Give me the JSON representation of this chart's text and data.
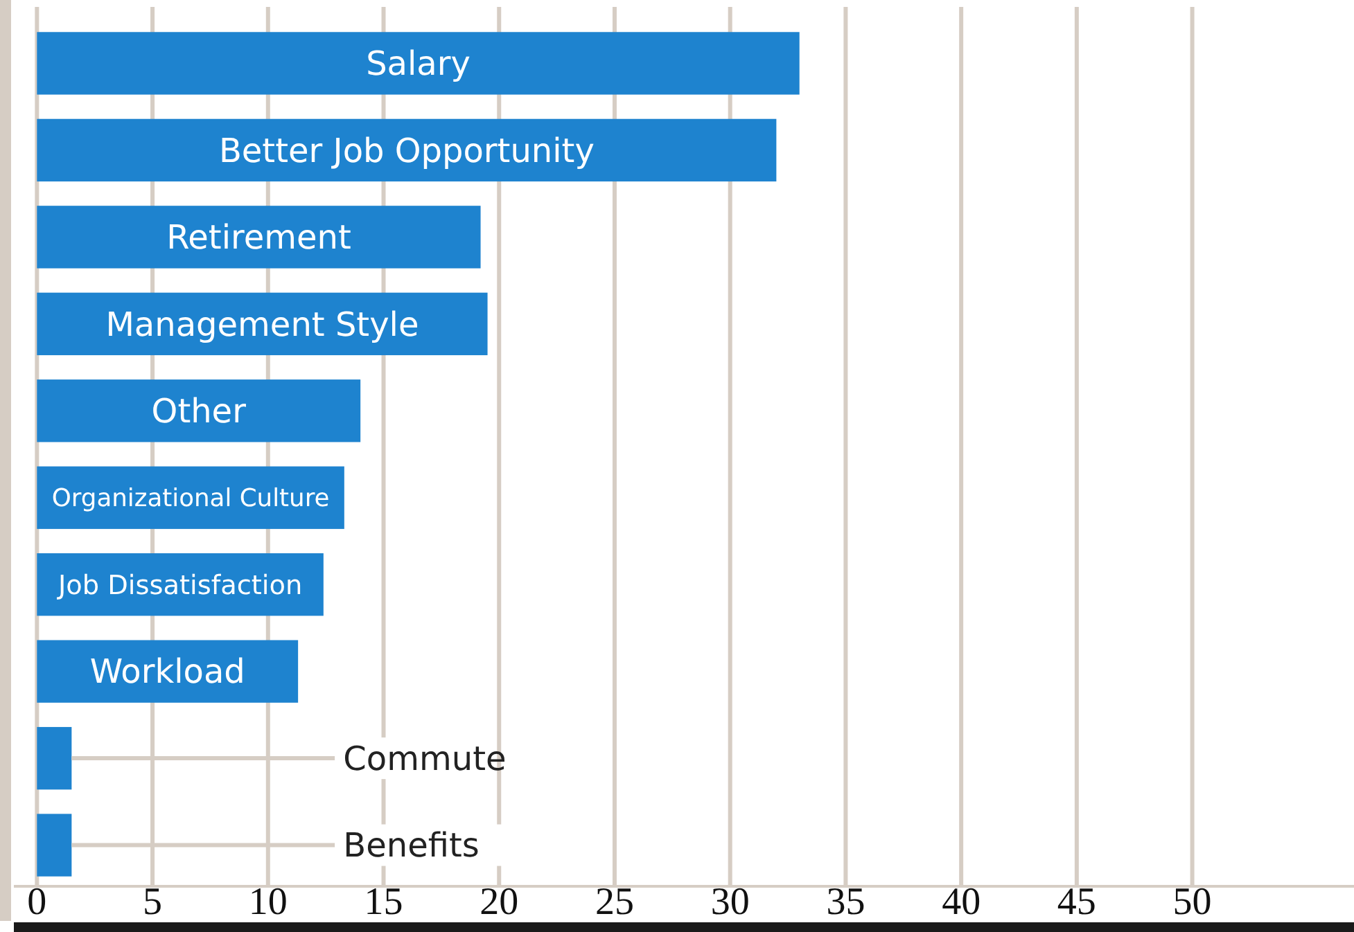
{
  "chart_data": {
    "type": "bar",
    "orientation": "horizontal",
    "categories": [
      "Salary",
      "Better Job Opportunity",
      "Retirement",
      "Management Style",
      "Other",
      "Organizational Culture",
      "Job Dissatisfaction",
      "Workload",
      "Commute",
      "Benefits"
    ],
    "values": [
      33,
      32,
      19.2,
      19.5,
      14,
      13.3,
      12.4,
      11.3,
      1.5,
      1.5
    ],
    "color": "#1e83cf",
    "xlim": [
      -1,
      57
    ],
    "xticks": [
      0,
      5,
      10,
      15,
      20,
      25,
      30,
      35,
      40,
      45,
      50
    ],
    "grid": "x"
  }
}
